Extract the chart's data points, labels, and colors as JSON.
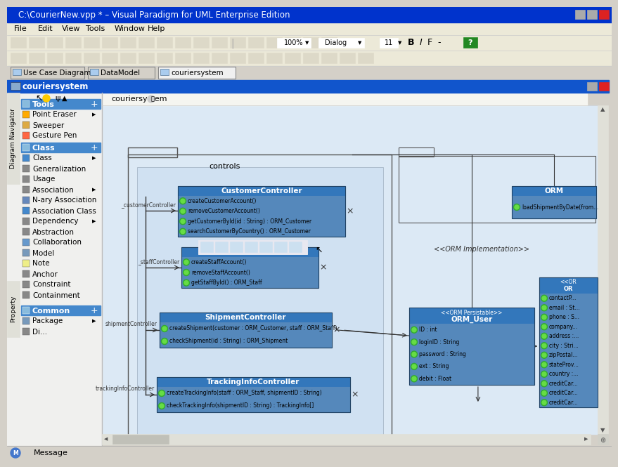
{
  "title_bar": "C:\\CourierNew.vpp * – Visual Paradigm for UML Enterprise Edition",
  "title_bar_color": "#0033cc",
  "window_bg": "#d4d0c8",
  "menu_items": [
    "File",
    "Edit",
    "View",
    "Tools",
    "Window",
    "Help"
  ],
  "tabs": [
    "Use Case Diagram1",
    "DataModel",
    "couriersystem"
  ],
  "active_tab": "couriersystem",
  "panel_title": "couriersystem",
  "panel_title_bg": "#1155cc",
  "diagram_bg": "#dce9f5",
  "sidebar_bg": "#f0f0ee",
  "class_header_bg": "#3377bb",
  "class_body_bg": "#5588bb",
  "controls_label": "controls",
  "orm_impl_label": "<<ORM Implementation>>"
}
